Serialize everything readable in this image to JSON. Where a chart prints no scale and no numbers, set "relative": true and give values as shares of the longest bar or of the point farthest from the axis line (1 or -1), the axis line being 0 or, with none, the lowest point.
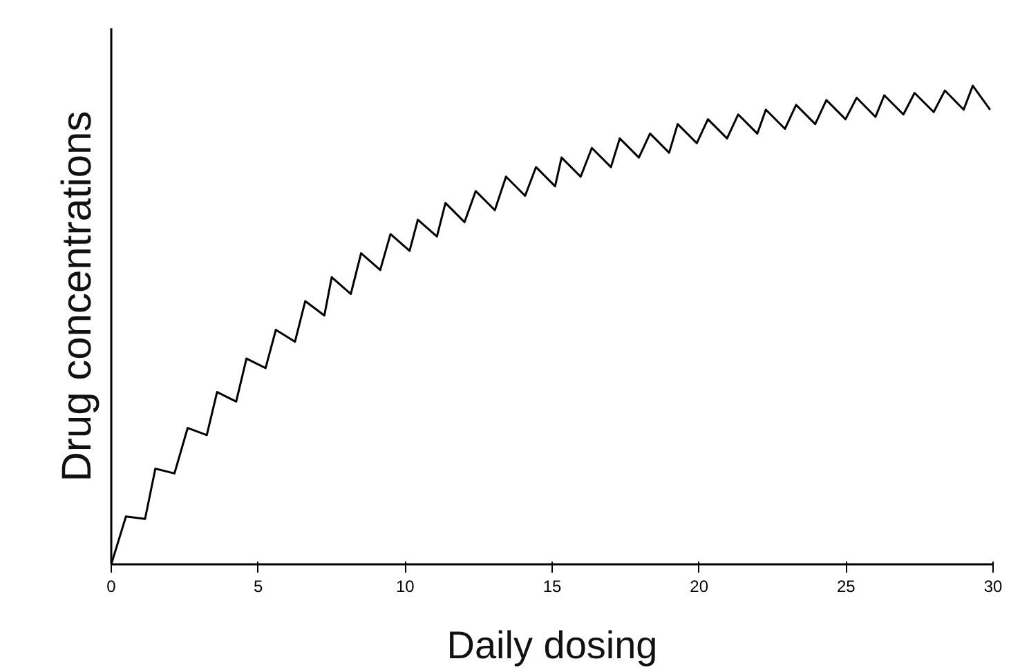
{
  "chart_data": {
    "type": "line",
    "relative": true,
    "xlabel": "Daily dosing",
    "ylabel": "Drug concentrations",
    "xlim": [
      0,
      30
    ],
    "xticks": [
      0,
      5,
      10,
      15,
      20,
      25,
      30
    ],
    "grid": false,
    "marker": "none",
    "line_style": "solid",
    "x": [
      0,
      0.5,
      1.15,
      1.5,
      2.15,
      2.6,
      3.25,
      3.6,
      4.25,
      4.6,
      5.25,
      5.6,
      6.25,
      6.6,
      7.25,
      7.5,
      8.15,
      8.5,
      9.15,
      9.5,
      10.15,
      10.43,
      11.08,
      11.37,
      12.02,
      12.4,
      13.05,
      13.43,
      14.08,
      14.45,
      15.1,
      15.32,
      15.97,
      16.35,
      17.0,
      17.3,
      17.95,
      18.33,
      18.98,
      19.27,
      19.92,
      20.3,
      20.95,
      21.33,
      21.98,
      22.27,
      22.92,
      23.3,
      23.95,
      24.33,
      24.98,
      25.36,
      26.0,
      26.3,
      26.95,
      27.33,
      27.98,
      28.36,
      29.0,
      29.31,
      29.9
    ],
    "series": [
      {
        "color": "#000000",
        "values": [
          0,
          0.1,
          0.095,
          0.2,
          0.19,
          0.285,
          0.27,
          0.36,
          0.34,
          0.43,
          0.41,
          0.49,
          0.465,
          0.55,
          0.52,
          0.6,
          0.565,
          0.65,
          0.615,
          0.69,
          0.655,
          0.72,
          0.685,
          0.755,
          0.715,
          0.78,
          0.74,
          0.81,
          0.77,
          0.83,
          0.79,
          0.85,
          0.81,
          0.87,
          0.83,
          0.89,
          0.85,
          0.9,
          0.86,
          0.92,
          0.88,
          0.93,
          0.89,
          0.94,
          0.9,
          0.95,
          0.91,
          0.96,
          0.92,
          0.97,
          0.93,
          0.975,
          0.935,
          0.98,
          0.94,
          0.985,
          0.945,
          0.99,
          0.95,
          1.0,
          0.95
        ]
      }
    ]
  }
}
